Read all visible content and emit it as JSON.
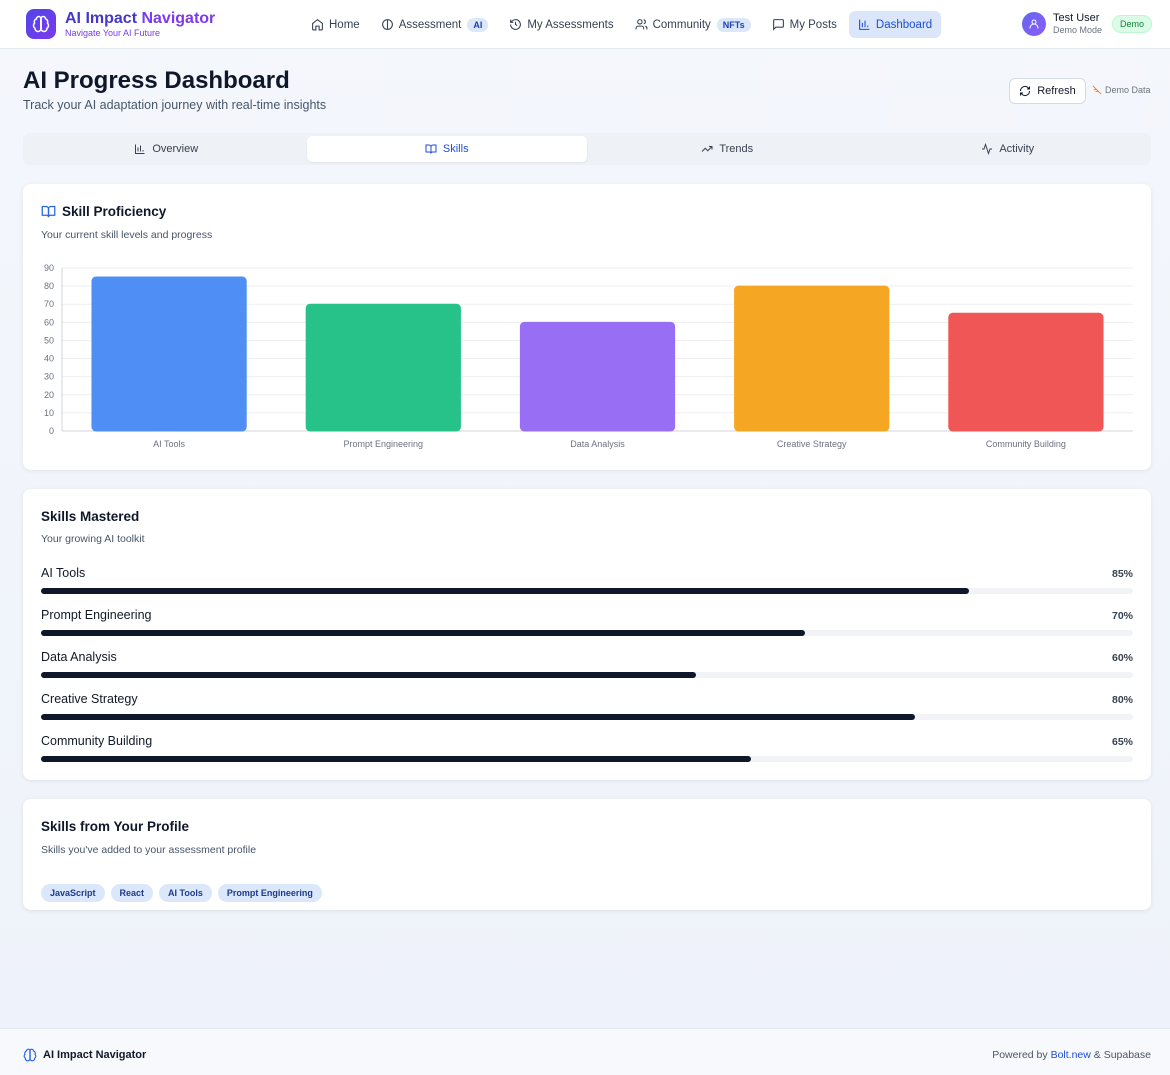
{
  "app": {
    "title_part1": "AI Impact",
    "title_part2": "Navigator",
    "tagline": "Navigate Your AI Future"
  },
  "nav": [
    {
      "label": "Home",
      "icon": "home-icon"
    },
    {
      "label": "Assessment",
      "icon": "brain-icon",
      "badge": "AI"
    },
    {
      "label": "My Assessments",
      "icon": "history-icon"
    },
    {
      "label": "Community",
      "icon": "users-icon",
      "badge": "NFTs"
    },
    {
      "label": "My Posts",
      "icon": "message-icon"
    },
    {
      "label": "Dashboard",
      "icon": "bar-chart-icon",
      "active": true
    }
  ],
  "user": {
    "name": "Test User",
    "mode": "Demo Mode",
    "badge": "Demo"
  },
  "page": {
    "title": "AI Progress Dashboard",
    "subtitle": "Track your AI adaptation journey with real-time insights",
    "refresh_label": "Refresh",
    "demo_data_label": "Demo Data"
  },
  "tabs": [
    {
      "label": "Overview",
      "icon": "bar-chart-icon"
    },
    {
      "label": "Skills",
      "icon": "book-open-icon",
      "active": true
    },
    {
      "label": "Trends",
      "icon": "trending-up-icon"
    },
    {
      "label": "Activity",
      "icon": "activity-icon"
    }
  ],
  "proficiency": {
    "title": "Skill Proficiency",
    "subtitle": "Your current skill levels and progress"
  },
  "chart_data": {
    "type": "bar",
    "categories": [
      "AI Tools",
      "Prompt Engineering",
      "Data Analysis",
      "Creative Strategy",
      "Community Building"
    ],
    "values": [
      85,
      70,
      60,
      80,
      65
    ],
    "colors": [
      "#4f8ef5",
      "#27c28a",
      "#986ef5",
      "#f5a623",
      "#f05656"
    ],
    "ylim": [
      0,
      90
    ],
    "yticks": [
      0,
      10,
      20,
      30,
      40,
      50,
      60,
      70,
      80,
      90
    ],
    "grid": true
  },
  "mastered": {
    "title": "Skills Mastered",
    "subtitle": "Your growing AI toolkit",
    "skills": [
      {
        "name": "AI Tools",
        "percent": 85,
        "percent_label": "85%"
      },
      {
        "name": "Prompt Engineering",
        "percent": 70,
        "percent_label": "70%"
      },
      {
        "name": "Data Analysis",
        "percent": 60,
        "percent_label": "60%"
      },
      {
        "name": "Creative Strategy",
        "percent": 80,
        "percent_label": "80%"
      },
      {
        "name": "Community Building",
        "percent": 65,
        "percent_label": "65%"
      }
    ]
  },
  "profile_skills": {
    "title": "Skills from Your Profile",
    "subtitle": "Skills you've added to your assessment profile",
    "tags": [
      "JavaScript",
      "React",
      "AI Tools",
      "Prompt Engineering"
    ]
  },
  "footer": {
    "brand": "AI Impact Navigator",
    "powered_prefix": "Powered by ",
    "powered_link": "Bolt.new",
    "powered_suffix": " & Supabase"
  }
}
